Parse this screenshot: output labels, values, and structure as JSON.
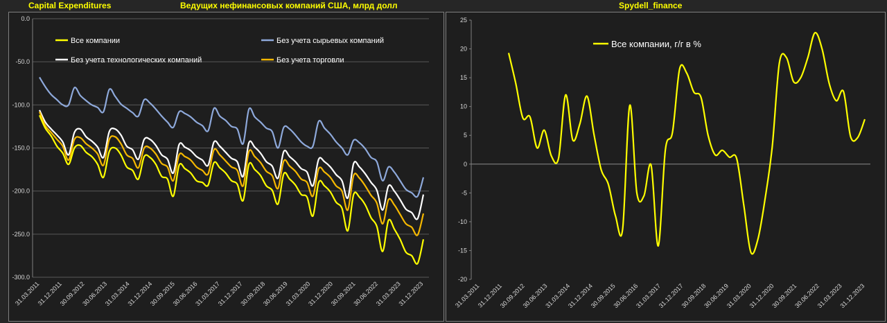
{
  "header": {
    "left_title": "Capital Expenditures",
    "center_title": "Ведущих нефинансовых компаний США, млрд долл",
    "right_title": "Spydell_finance"
  },
  "colors": {
    "background": "#262626",
    "plot_background": "#1e1e1e",
    "yellow": "#ffff00",
    "blue": "#8ea9db",
    "white": "#ffffff",
    "orange": "#f5b800",
    "grid": "#595959"
  },
  "chart_data": [
    {
      "type": "line",
      "ylim": [
        -300,
        0
      ],
      "yticks": [
        "0.0",
        "-50.0",
        "-100.0",
        "-150.0",
        "-200.0",
        "-250.0",
        "-300.0"
      ],
      "xticks": [
        "31.03.2011",
        "31.12.2011",
        "30.09.2012",
        "30.06.2013",
        "31.03.2014",
        "31.12.2014",
        "30.09.2015",
        "30.06.2016",
        "31.03.2017",
        "31.12.2017",
        "30.09.2018",
        "30.06.2019",
        "31.03.2020",
        "31.12.2020",
        "30.09.2021",
        "30.06.2022",
        "31.03.2023",
        "31.12.2023"
      ],
      "grid": true,
      "legend": "top",
      "series": [
        {
          "name": "Все компании",
          "color": "#ffff00",
          "values": [
            -112,
            -127,
            -136,
            -148,
            -156,
            -169,
            -150,
            -147,
            -155,
            -160,
            -169,
            -184,
            -154,
            -150,
            -158,
            -172,
            -176,
            -186,
            -160,
            -161,
            -169,
            -183,
            -186,
            -206,
            -170,
            -174,
            -179,
            -188,
            -190,
            -193,
            -167,
            -173,
            -179,
            -188,
            -192,
            -211,
            -169,
            -175,
            -182,
            -194,
            -199,
            -215,
            -180,
            -186,
            -193,
            -204,
            -207,
            -229,
            -190,
            -194,
            -201,
            -213,
            -220,
            -246,
            -204,
            -207,
            -216,
            -231,
            -241,
            -270,
            -234,
            -244,
            -256,
            -271,
            -275,
            -284,
            -256
          ]
        },
        {
          "name": "Без учета сырьевых компаний",
          "color": "#8ea9db",
          "values": [
            -68,
            -79,
            -88,
            -94,
            -100,
            -100,
            -80,
            -89,
            -95,
            -100,
            -103,
            -108,
            -82,
            -90,
            -99,
            -104,
            -109,
            -113,
            -94,
            -98,
            -105,
            -113,
            -120,
            -126,
            -108,
            -110,
            -114,
            -120,
            -124,
            -130,
            -104,
            -113,
            -118,
            -125,
            -128,
            -145,
            -105,
            -114,
            -120,
            -127,
            -131,
            -150,
            -126,
            -128,
            -135,
            -143,
            -148,
            -148,
            -119,
            -127,
            -134,
            -143,
            -150,
            -158,
            -141,
            -144,
            -151,
            -161,
            -166,
            -188,
            -172,
            -178,
            -188,
            -198,
            -202,
            -206,
            -184
          ]
        },
        {
          "name": "Без учета технологических компаний",
          "color": "#ffffff",
          "values": [
            -106,
            -120,
            -128,
            -135,
            -143,
            -158,
            -132,
            -128,
            -137,
            -142,
            -149,
            -161,
            -131,
            -128,
            -135,
            -148,
            -152,
            -163,
            -140,
            -140,
            -147,
            -158,
            -163,
            -179,
            -146,
            -149,
            -153,
            -160,
            -164,
            -170,
            -143,
            -148,
            -155,
            -162,
            -166,
            -183,
            -144,
            -149,
            -156,
            -166,
            -171,
            -185,
            -154,
            -160,
            -166,
            -174,
            -178,
            -194,
            -163,
            -166,
            -172,
            -181,
            -188,
            -208,
            -168,
            -172,
            -180,
            -190,
            -199,
            -222,
            -194,
            -200,
            -210,
            -221,
            -225,
            -232,
            -204
          ]
        },
        {
          "name": "Без учета торговли",
          "color": "#f5b800",
          "values": [
            -108,
            -124,
            -132,
            -140,
            -148,
            -164,
            -140,
            -138,
            -145,
            -150,
            -157,
            -170,
            -140,
            -137,
            -145,
            -158,
            -162,
            -173,
            -150,
            -150,
            -157,
            -168,
            -172,
            -188,
            -158,
            -160,
            -164,
            -172,
            -176,
            -180,
            -152,
            -158,
            -165,
            -172,
            -176,
            -194,
            -154,
            -160,
            -167,
            -177,
            -182,
            -197,
            -165,
            -171,
            -177,
            -186,
            -190,
            -206,
            -174,
            -178,
            -184,
            -194,
            -200,
            -222,
            -182,
            -185,
            -194,
            -205,
            -214,
            -238,
            -210,
            -216,
            -227,
            -238,
            -242,
            -251,
            -226
          ]
        }
      ]
    },
    {
      "type": "line",
      "ylim": [
        -20,
        25
      ],
      "yticks": [
        "25",
        "20",
        "15",
        "10",
        "5",
        "0",
        "-5",
        "-10",
        "-15",
        "-20"
      ],
      "xticks": [
        "31.03.2011",
        "31.12.2011",
        "30.09.2012",
        "30.06.2013",
        "31.03.2014",
        "31.12.2014",
        "30.09.2015",
        "30.06.2016",
        "31.03.2017",
        "31.12.2017",
        "30.09.2018",
        "30.06.2019",
        "31.03.2020",
        "31.12.2020",
        "30.09.2021",
        "30.06.2022",
        "31.03.2023",
        "31.12.2023"
      ],
      "grid": false,
      "legend": "top-left",
      "series": [
        {
          "name": "Все компании, г/г в %",
          "color": "#ffff00",
          "values": [
            19.3,
            14,
            8,
            8.2,
            2.8,
            5.9,
            1.4,
            1,
            12,
            4.2,
            7,
            11.8,
            5,
            -1,
            -3.5,
            -9,
            -11.3,
            10.2,
            -5,
            -5.5,
            -0.2,
            -14.2,
            2.5,
            5.5,
            16.5,
            15.8,
            12.5,
            11.6,
            5,
            1.6,
            2.4,
            1.2,
            1,
            -7,
            -15.3,
            -13,
            -6,
            3,
            17.5,
            18.5,
            14.3,
            15,
            18.5,
            22.8,
            20,
            14,
            11,
            12.6,
            4.8,
            4.6,
            7.8
          ]
        }
      ]
    }
  ]
}
